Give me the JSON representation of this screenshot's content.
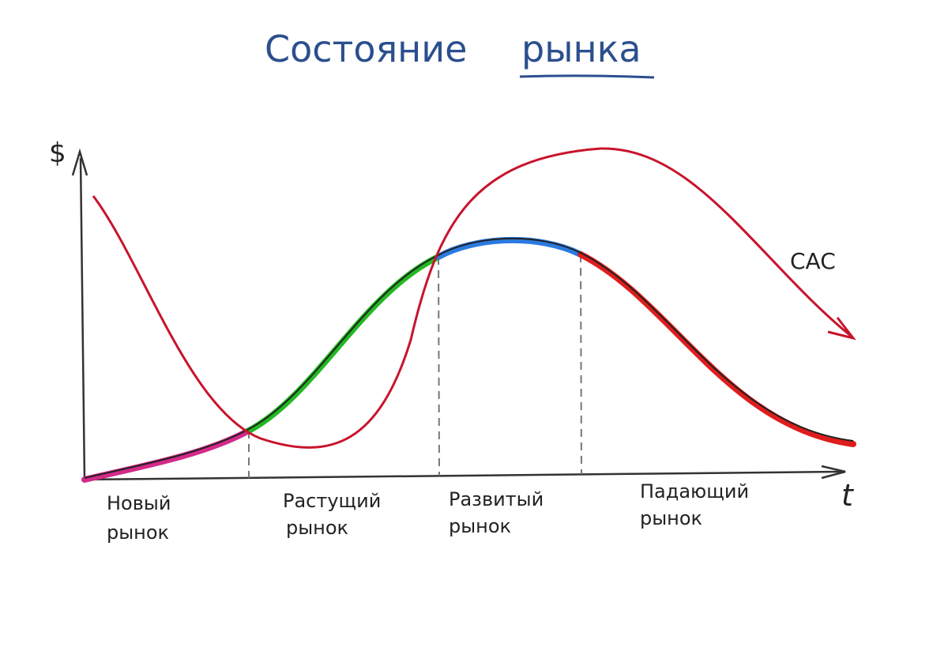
{
  "title": {
    "lead": "Состояние",
    "underlined": "рынка"
  },
  "axes": {
    "y_label": "$",
    "x_label": "t"
  },
  "curve_label": "CAC",
  "stages": [
    {
      "line1": "Новый",
      "line2": "рынок"
    },
    {
      "line1": "Растущий",
      "line2": "рынок"
    },
    {
      "line1": "Развитый",
      "line2": "рынок"
    },
    {
      "line1": "Падающий",
      "line2": "рынок"
    }
  ]
}
